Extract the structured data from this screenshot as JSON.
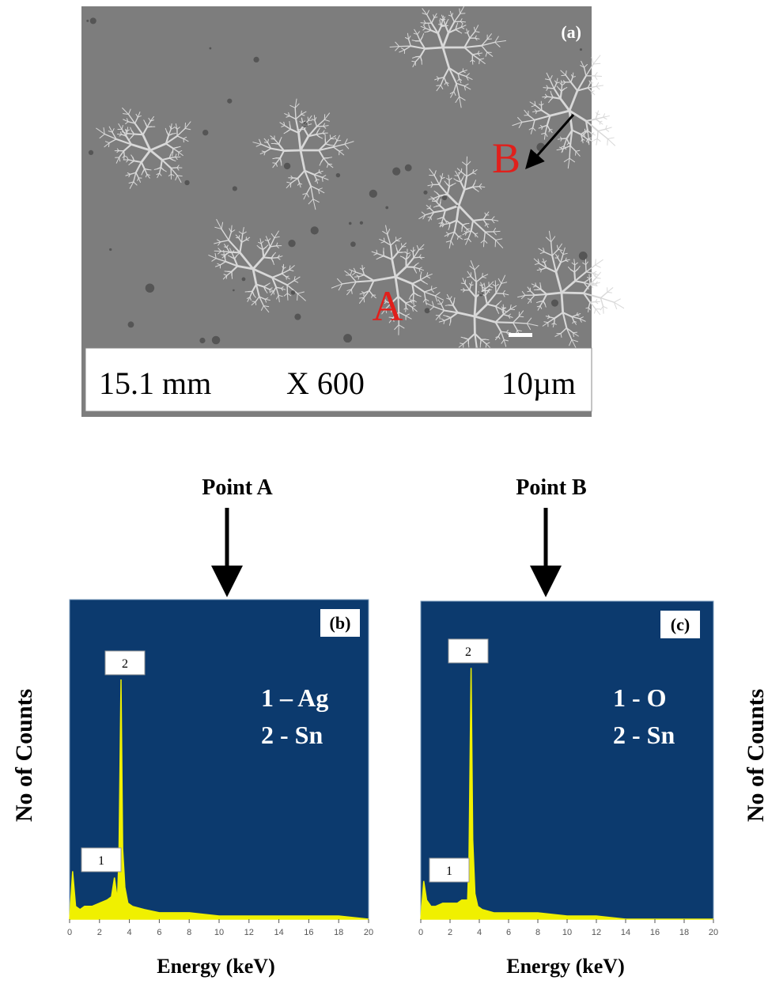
{
  "figure": {
    "panel_a": {
      "label": "(a)",
      "marker_a": "A",
      "marker_b": "B",
      "scale_bar": {
        "distance": "15.1 mm",
        "magnification": "X 600",
        "scale": "10µm"
      }
    },
    "arrow_labels": [
      "Point A",
      "Point B"
    ]
  },
  "chart_data": [
    {
      "type": "area",
      "label": "(b)",
      "peak_labels": [
        "1",
        "2"
      ],
      "annotations": [
        "1 – Ag",
        "2 - Sn"
      ],
      "x_label": "Energy (keV)",
      "y_label": "No of Counts",
      "x": [
        0,
        0.2,
        0.4,
        0.7,
        1,
        1.5,
        2,
        2.5,
        2.8,
        3.0,
        3.2,
        3.3,
        3.44,
        3.55,
        3.7,
        3.9,
        4.2,
        5,
        6,
        8,
        10,
        12,
        14,
        16,
        18,
        20
      ],
      "series": [
        {
          "color": "#f0f000",
          "values": [
            0,
            15,
            4,
            3,
            4,
            4,
            5,
            6,
            7,
            13,
            6,
            20,
            75,
            22,
            10,
            5,
            4,
            3,
            2,
            2,
            1,
            1,
            1,
            1,
            1,
            0
          ]
        }
      ],
      "xlim": [
        0,
        20
      ],
      "ylim": [
        0,
        100
      ],
      "xticks": [
        0,
        2,
        4,
        6,
        8,
        10,
        12,
        14,
        16,
        18,
        20
      ]
    },
    {
      "type": "area",
      "label": "(c)",
      "peak_labels": [
        "1",
        "2"
      ],
      "annotations": [
        "1 - O",
        "2 - Sn"
      ],
      "x_label": "Energy (keV)",
      "y_label": "No of Counts",
      "x": [
        0,
        0.2,
        0.4,
        0.7,
        1,
        1.5,
        2,
        2.5,
        2.8,
        3.0,
        3.2,
        3.3,
        3.44,
        3.55,
        3.7,
        3.9,
        4.2,
        5,
        6,
        8,
        10,
        12,
        14,
        16,
        18,
        20
      ],
      "series": [
        {
          "color": "#f0f000",
          "values": [
            0,
            12,
            6,
            4,
            4,
            5,
            5,
            5,
            6,
            6,
            6,
            20,
            79,
            25,
            8,
            4,
            3,
            2,
            2,
            2,
            1,
            1,
            0,
            0,
            0,
            0
          ]
        }
      ],
      "xlim": [
        0,
        20
      ],
      "ylim": [
        0,
        100
      ],
      "xticks": [
        0,
        2,
        4,
        6,
        8,
        10,
        12,
        14,
        16,
        18,
        20
      ]
    }
  ]
}
